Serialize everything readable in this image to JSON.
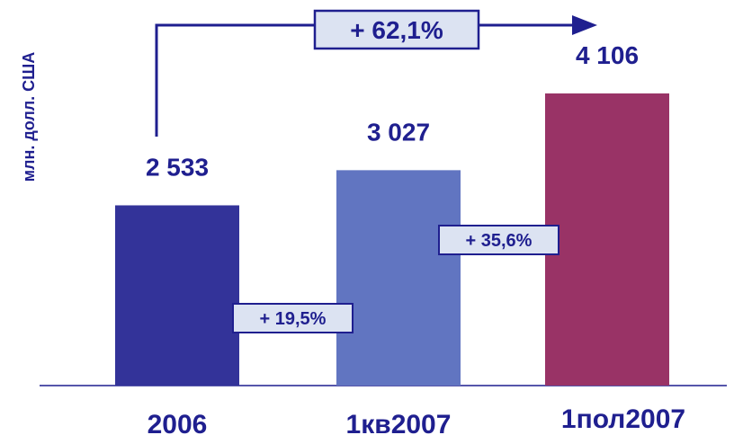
{
  "chart_data": {
    "type": "bar",
    "categories": [
      "2006",
      "1кв2007",
      "1пол2007"
    ],
    "values": [
      2533,
      3027,
      4106
    ],
    "value_labels": [
      "2 533",
      "3 027",
      "4 106"
    ],
    "ylabel": "млн. долл. США",
    "ylim": [
      0,
      4800
    ],
    "colors": [
      "#333399",
      "#6175c1",
      "#993366"
    ],
    "growth": [
      {
        "from": "2006",
        "to": "1кв2007",
        "label": "+ 19,5%"
      },
      {
        "from": "1кв2007",
        "to": "1пол2007",
        "label": "+ 35,6%"
      },
      {
        "from": "2006",
        "to": "1пол2007",
        "label": "+ 62,1%"
      }
    ],
    "grid": false
  }
}
